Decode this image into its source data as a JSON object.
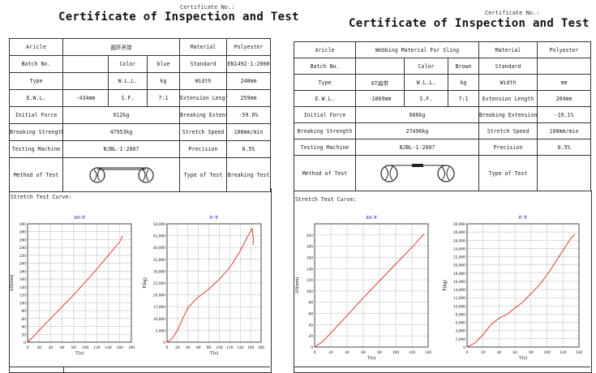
{
  "left": {
    "cert_no_label": "Certificate No.:",
    "title": "Certificate of Inspection and Test",
    "rows": {
      "article_label": "Aricle",
      "article_value": "圆环吊带",
      "material_label": "Material",
      "material_value": "Polyester",
      "batch_label": "Batch No.",
      "color_label": "Color",
      "color_value": "blue",
      "standard_label": "Standard",
      "standard_value": "EN1492-1:2008",
      "type_label": "Type",
      "wll_label": "W.L.L.",
      "wll_unit": "kg",
      "width_label": "Width",
      "width_value": "240mm",
      "el_label": "E.W.L.",
      "el_value": "-434mm",
      "sf_label": "S.F.",
      "sf_value": "7:1",
      "ext_length_label": "Extension Length",
      "ext_length_value": "259mm",
      "initial_force_label": "Initial Force",
      "initial_force_value": "612kg",
      "breaking_ext_label": "Breaking Extension",
      "breaking_ext_value": "-59.6%",
      "breaking_strength_label": "Breaking Strength",
      "breaking_strength_value": "47953kg",
      "stretch_speed_label": "Stretch Speed",
      "stretch_speed_value": "100mm/min",
      "machine_label": "Testing Machine",
      "machine_value": "NJBL-1-2007",
      "precision_label": "Precision",
      "precision_value": "0.5%",
      "method_label": "Method of Test",
      "type_of_test_label": "Type of Test",
      "type_of_test_value": "Breaking Test"
    },
    "stretch_label": "Stretch Test Curve:"
  },
  "right": {
    "cert_no_label": "Certificate No.:",
    "title": "Certificate of Inspection and Test",
    "rows": {
      "article_label": "Aricle",
      "article_value": "Webbing Material For Sling",
      "material_label": "Material",
      "material_value": "Polyester",
      "batch_label": "Batch No.",
      "color_label": "Color",
      "color_value": "Brown",
      "standard_label": "Standard",
      "standard_value": "",
      "type_label": "Type",
      "type_value": "6T扁带",
      "wll_label": "W.L.L.",
      "wll_unit": "kg",
      "width_label": "Width",
      "width_value": "mm",
      "el_label": "E.W.L.",
      "el_value": "-1069mm",
      "sf_label": "S.F.",
      "sf_value": "7:1",
      "ext_length_label": "Extension Length",
      "ext_length_value": "204mm",
      "initial_force_label": "Initial Force",
      "initial_force_value": "606kg",
      "breaking_ext_label": "Breaking Extension",
      "breaking_ext_value": "-19.1%",
      "breaking_strength_label": "Breaking Strength",
      "breaking_strength_value": "27496kg",
      "stretch_speed_label": "Stretch Speed",
      "stretch_speed_value": "100mm/min",
      "machine_label": "Testing Machine",
      "machine_value": "NJBL-1-2007",
      "precision_label": "Precision",
      "precision_value": "0.5%",
      "method_label": "Method of Test",
      "type_of_test_label": "Type of Test",
      "type_of_test_value": ""
    },
    "stretch_label": "Stretch Test Curve:"
  },
  "chart_data": [
    {
      "type": "line",
      "title": "ΔS-T",
      "xlabel": "T(s)",
      "ylabel": "ΔS(mm)",
      "xlim": [
        0,
        180
      ],
      "ylim": [
        0,
        300
      ],
      "xticks": [
        0,
        20,
        40,
        60,
        80,
        100,
        120,
        140,
        160,
        180
      ],
      "yticks": [
        0,
        20,
        40,
        60,
        80,
        100,
        120,
        140,
        160,
        180,
        200,
        220,
        240,
        260,
        280,
        300
      ],
      "ytick_labels": [
        "0",
        "20",
        "40",
        "60",
        "80",
        "100",
        "120",
        "140",
        "160",
        "180",
        "200",
        "220",
        "240",
        "260",
        "280",
        "300"
      ],
      "color": "#e0261c",
      "x": [
        0,
        10,
        20,
        40,
        60,
        80,
        100,
        120,
        140,
        160,
        165
      ],
      "y": [
        0,
        14,
        30,
        60,
        90,
        120,
        152,
        185,
        220,
        255,
        270
      ]
    },
    {
      "type": "line",
      "title": "F-T",
      "xlabel": "T(s)",
      "ylabel": "F(kg)",
      "xlim": [
        0,
        180
      ],
      "ylim": [
        0,
        50000
      ],
      "xticks": [
        0,
        20,
        40,
        60,
        80,
        100,
        120,
        140,
        160,
        180
      ],
      "yticks": [
        0,
        5000,
        10000,
        15000,
        20000,
        25000,
        30000,
        35000,
        40000,
        45000,
        50000
      ],
      "ytick_labels": [
        "0",
        "5,000",
        "10,000",
        "15,000",
        "20,000",
        "25,000",
        "30,000",
        "35,000",
        "40,000",
        "45,000",
        "50,000"
      ],
      "color": "#e0261c",
      "x": [
        0,
        10,
        20,
        30,
        40,
        50,
        60,
        80,
        100,
        120,
        140,
        155,
        163,
        165,
        165
      ],
      "y": [
        0,
        1500,
        5000,
        10000,
        14500,
        17000,
        19000,
        22500,
        26500,
        31500,
        38500,
        45000,
        48000,
        44000,
        41000
      ]
    },
    {
      "type": "line",
      "title": "ΔS-T",
      "xlabel": "T(s)",
      "ylabel": "ΔS(mm)",
      "xlim": [
        0,
        140
      ],
      "ylim": [
        0,
        220
      ],
      "xticks": [
        0,
        20,
        40,
        60,
        80,
        100,
        120,
        140
      ],
      "yticks": [
        0,
        20,
        40,
        60,
        80,
        100,
        120,
        140,
        160,
        180,
        200,
        220
      ],
      "ytick_labels": [
        "0",
        "20",
        "40",
        "60",
        "80",
        "100",
        "120",
        "140",
        "160",
        "180",
        "200",
        ""
      ],
      "color": "#e0261c",
      "x": [
        0,
        10,
        20,
        40,
        60,
        80,
        100,
        120,
        135
      ],
      "y": [
        0,
        10,
        25,
        56,
        88,
        118,
        148,
        178,
        202
      ]
    },
    {
      "type": "line",
      "title": "F-T",
      "xlabel": "T(s)",
      "ylabel": "F(kg)",
      "xlim": [
        0,
        140
      ],
      "ylim": [
        0,
        30000
      ],
      "xticks": [
        0,
        20,
        40,
        60,
        80,
        100,
        120,
        140
      ],
      "yticks": [
        0,
        2000,
        4000,
        6000,
        8000,
        10000,
        12000,
        14000,
        16000,
        18000,
        20000,
        22000,
        24000,
        26000,
        28000,
        30000
      ],
      "ytick_labels": [
        "0",
        "2,000",
        "4,000",
        "6,000",
        "8,000",
        "10,000",
        "12,000",
        "14,000",
        "16,000",
        "18,000",
        "20,000",
        "22,000",
        "24,000",
        "26,000",
        "28,000",
        "30,000"
      ],
      "color": "#e0261c",
      "x": [
        0,
        10,
        20,
        30,
        40,
        50,
        60,
        70,
        80,
        90,
        100,
        110,
        120,
        130,
        135
      ],
      "y": [
        0,
        1000,
        3000,
        5500,
        7000,
        8000,
        9500,
        11000,
        13000,
        15000,
        17500,
        20500,
        23500,
        26500,
        27500
      ]
    }
  ]
}
